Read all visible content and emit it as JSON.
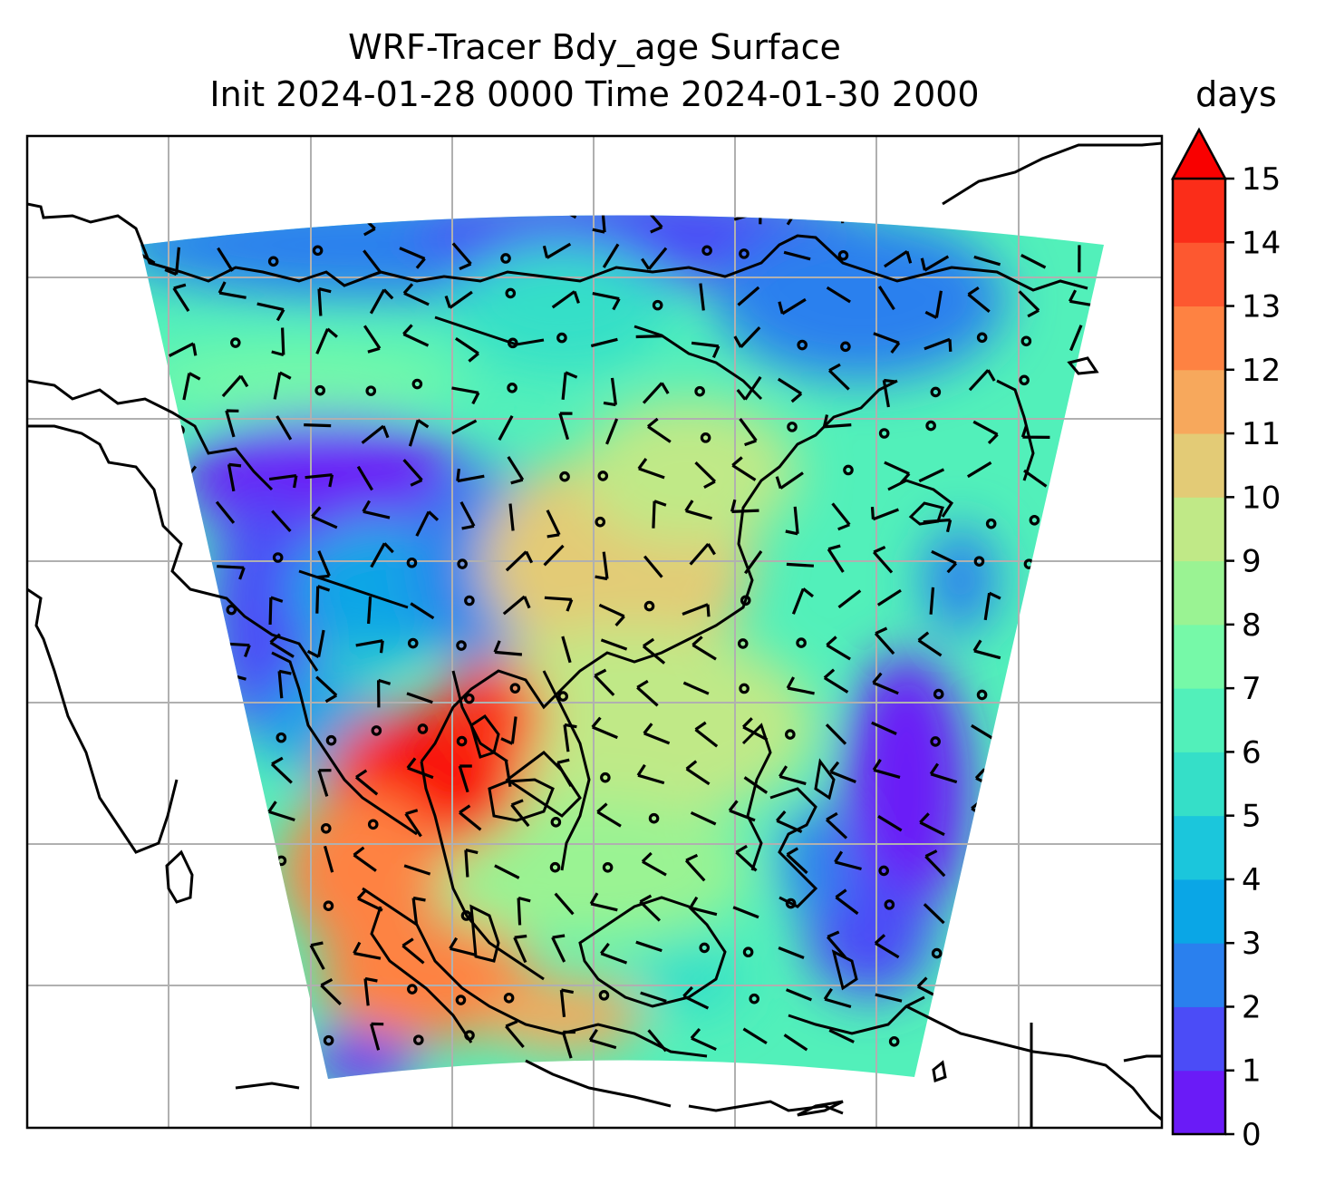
{
  "title_line1": "WRF-Tracer Bdy_age Surface",
  "title_line2": "Init 2024-01-28 0000 Time 2024-01-30 2000",
  "colorbar": {
    "label": "days",
    "ticks": [
      "0",
      "1",
      "2",
      "3",
      "4",
      "5",
      "6",
      "7",
      "8",
      "9",
      "10",
      "11",
      "12",
      "13",
      "14",
      "15"
    ],
    "levels": [
      0,
      1,
      2,
      3,
      4,
      5,
      6,
      7,
      8,
      9,
      10,
      11,
      12,
      13,
      14,
      15
    ],
    "extend": "max",
    "colors": [
      "#6a1bf7",
      "#4b4cf7",
      "#2a80ee",
      "#0aa6e6",
      "#1bc6dc",
      "#35dfc8",
      "#52f0ba",
      "#76f9a8",
      "#9af393",
      "#c0e987",
      "#e3cb76",
      "#f7a85c",
      "#fe8242",
      "#fd5830",
      "#fb2d19",
      "#f90000"
    ]
  },
  "chart_data": {
    "type": "heatmap",
    "title": "WRF-Tracer Bdy_age Surface",
    "subtitle": "Init 2024-01-28 0000 Time 2024-01-30 2000",
    "variable": "Bdy_age",
    "units": "days",
    "color_scale": {
      "min": 0,
      "max": 15,
      "extend": "max",
      "cmap": "rainbow"
    },
    "overlays": [
      "coastlines",
      "wind-barbs",
      "gridlines"
    ],
    "grid": true,
    "legend_placement": "right"
  }
}
